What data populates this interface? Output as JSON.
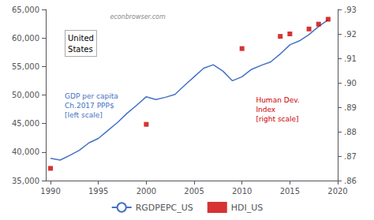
{
  "chart_data": {
    "type": "line",
    "series": [
      {
        "name": "RGDPEPC_US",
        "type": "line",
        "color": "#4472C4",
        "line_style": "solid",
        "x": [
          1990,
          1991,
          1992,
          1993,
          1994,
          1995,
          1996,
          1997,
          1998,
          1999,
          2000,
          2001,
          2002,
          2003,
          2004,
          2005,
          2006,
          2007,
          2008,
          2009,
          2010,
          2011,
          2012,
          2013,
          2014,
          2015,
          2016,
          2017,
          2018,
          2019
        ],
        "values": [
          38900,
          38600,
          39400,
          40300,
          41600,
          42400,
          43800,
          45200,
          46800,
          48200,
          49700,
          49200,
          49600,
          50100,
          51700,
          53200,
          54700,
          55300,
          54200,
          52500,
          53200,
          54500,
          55200,
          55800,
          57200,
          58800,
          59500,
          60600,
          62000,
          63200
        ]
      },
      {
        "name": "HDI_US",
        "type": "scatter",
        "axis": "y2",
        "color": "#CC0000",
        "marker": "square",
        "x": [
          1990,
          2000,
          2010,
          2014,
          2015,
          2017,
          2018,
          2019
        ],
        "values": [
          0.865,
          0.883,
          0.914,
          0.919,
          0.92,
          0.922,
          0.924,
          0.926
        ]
      }
    ],
    "xlim": [
      1989.5,
      2020
    ],
    "xticks": [
      1990,
      1995,
      2000,
      2005,
      2010,
      2015,
      2020
    ],
    "ylim": [
      35000,
      65000
    ],
    "yticks": [
      {
        "value": 35000,
        "label": "35,000"
      },
      {
        "value": 40000,
        "label": "40,000"
      },
      {
        "value": 45000,
        "label": "45,000"
      },
      {
        "value": 50000,
        "label": "50,000"
      },
      {
        "value": 55000,
        "label": "55,000"
      },
      {
        "value": 60000,
        "label": "60,000"
      },
      {
        "value": 65000,
        "label": "65,000"
      }
    ],
    "y2lim": [
      0.86,
      0.93
    ],
    "y2ticks": [
      {
        "value": 0.86,
        "label": ".86"
      },
      {
        "value": 0.87,
        "label": ".87"
      },
      {
        "value": 0.88,
        "label": ".88"
      },
      {
        "value": 0.89,
        "label": ".89"
      },
      {
        "value": 0.9,
        "label": ".90"
      },
      {
        "value": 0.91,
        "label": ".91"
      },
      {
        "value": 0.92,
        "label": ".92"
      },
      {
        "value": 0.93,
        "label": ".93"
      }
    ],
    "annotations": [
      {
        "text": "econbrowser.com",
        "color": "#888888"
      },
      {
        "text": "United\nStates",
        "color": "#000000"
      },
      {
        "text": "GDP per capita\nCh.2017 PPP$\n[left scale]",
        "color": "#4472C4"
      },
      {
        "text": "Human Dev.\nIndex\n[right scale]",
        "color": "#CC0000"
      }
    ],
    "grid": false,
    "legend": "bottom"
  }
}
